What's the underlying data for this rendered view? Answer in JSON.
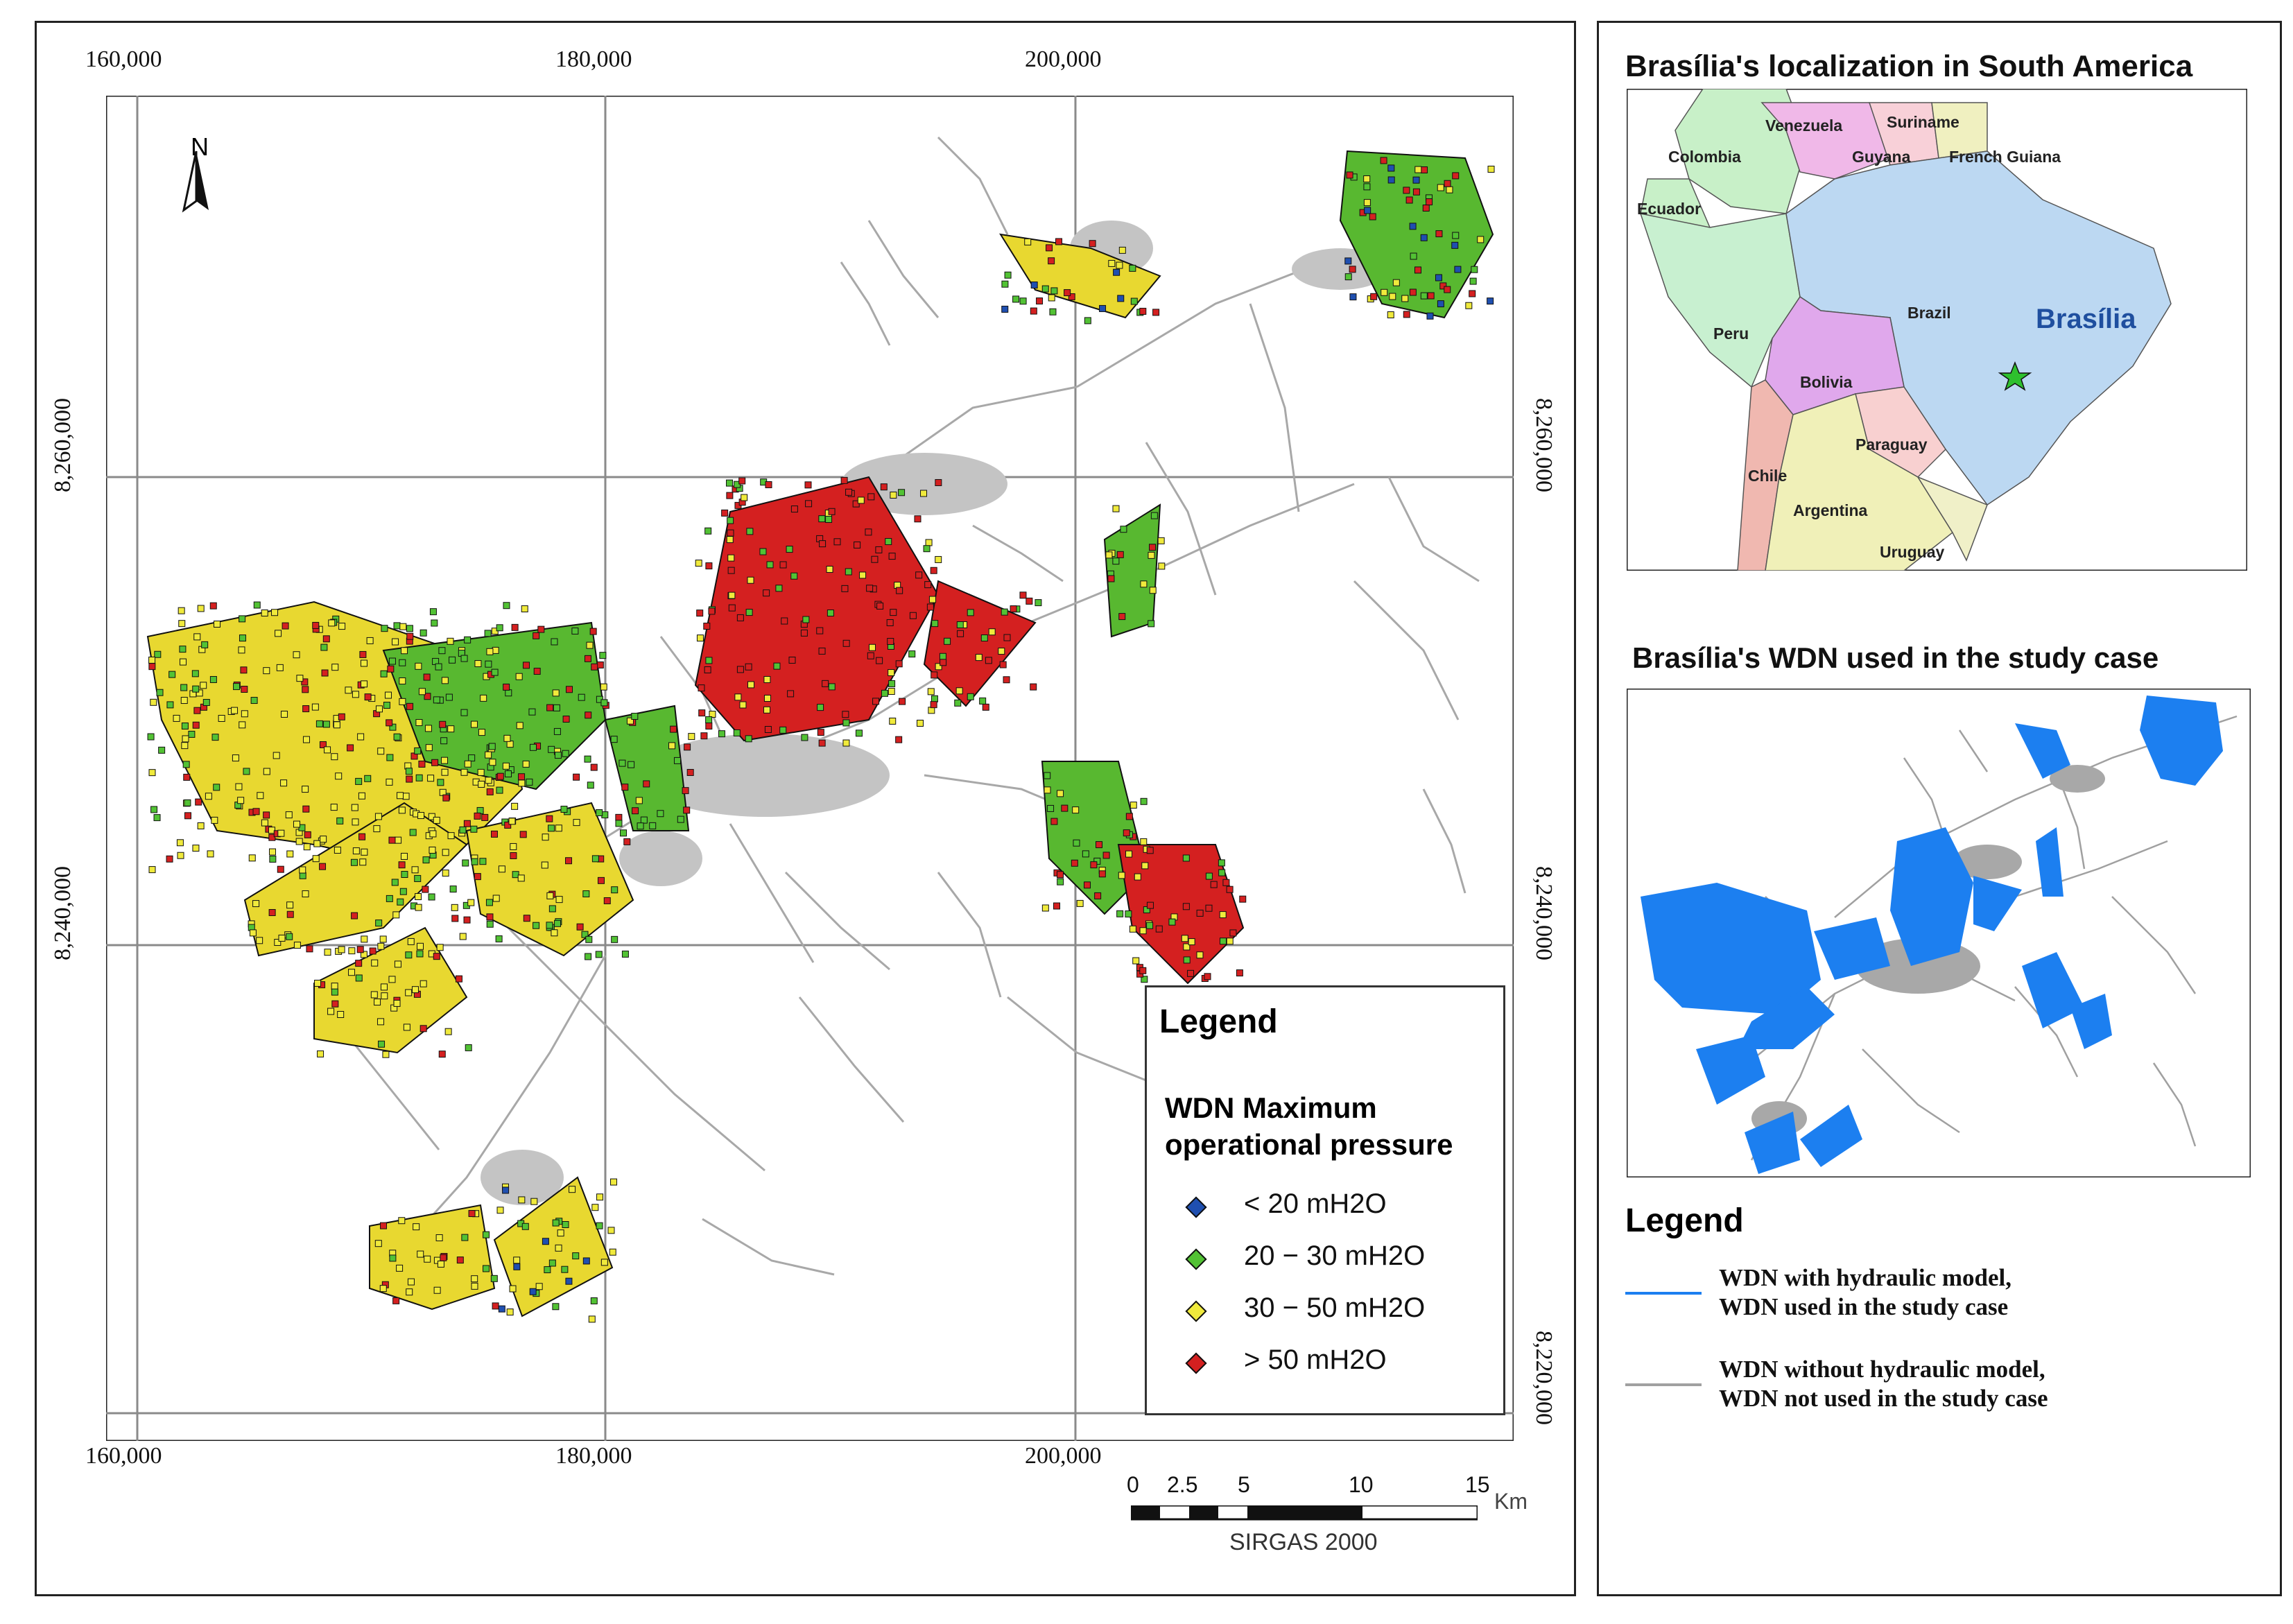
{
  "main_map": {
    "x_ticks": [
      "160,000",
      "180,000",
      "200,000"
    ],
    "y_ticks": [
      "8,260,000",
      "8,240,000",
      "8,220,000"
    ],
    "north_label": "N",
    "legend": {
      "title": "Legend",
      "subtitle_line1": "WDN Maximum",
      "subtitle_line2": "operational pressure",
      "items": [
        {
          "label": "< 20 mH2O",
          "color": "#1f4fb0"
        },
        {
          "label": "20 − 30 mH2O",
          "color": "#52c234"
        },
        {
          "label": "30 − 50 mH2O",
          "color": "#f0ea3c"
        },
        {
          "label": "> 50 mH2O",
          "color": "#d42020"
        }
      ]
    },
    "scale_bar": {
      "labels": [
        "0",
        "2.5",
        "5",
        "10",
        "15"
      ],
      "unit": "Km",
      "crs": "SIRGAS 2000"
    }
  },
  "inset_south_america": {
    "title": "Brasília's localization in South America",
    "countries": [
      "Venezuela",
      "Suriname",
      "Colombia",
      "Guyana",
      "French Guiana",
      "Ecuador",
      "Brazil",
      "Peru",
      "Bolivia",
      "Paraguay",
      "Chile",
      "Argentina",
      "Uruguay"
    ],
    "city_label": "Brasília",
    "colors": {
      "brazil": "#bcd8f2",
      "colombia": "#c8f0c8",
      "venezuela": "#f0b8e8",
      "peru": "#c8f0d0",
      "bolivia": "#e0a8ec",
      "argentina": "#f0f0b8",
      "chile": "#f0b8b0",
      "paraguay": "#f8d0d0",
      "star": "#2ec02e",
      "city_text": "#1f4f9f"
    }
  },
  "inset_wdn": {
    "title": "Brasília's WDN used in the study case",
    "colors": {
      "used": "#1c7ff0",
      "not_used": "#a0a0a0"
    }
  },
  "right_legend": {
    "title": "Legend",
    "items": [
      {
        "line1": "WDN with hydraulic model,",
        "line2": "WDN used in the study case",
        "color": "#1c7ff0"
      },
      {
        "line1": "WDN without hydraulic model,",
        "line2": "WDN not used in the study case",
        "color": "#a0a0a0"
      }
    ]
  }
}
